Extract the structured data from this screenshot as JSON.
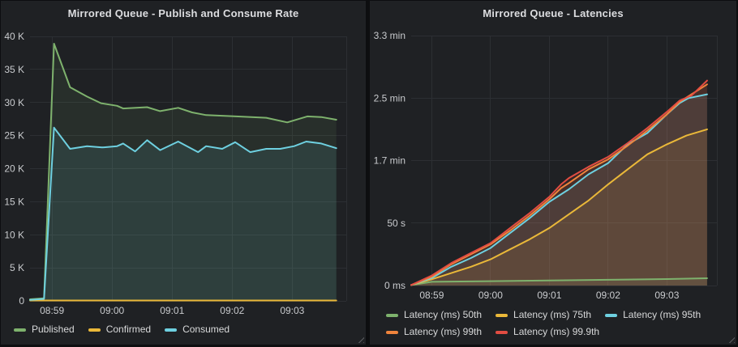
{
  "colors": {
    "page_bg": "#0d0e10",
    "panel_bg": "#1f2124",
    "grid": "#2c2f33",
    "tick_text": "#c9cbce",
    "title_text": "#dcdde0",
    "legend_text": "#d8d9da",
    "palette_green": "#7EB26D",
    "palette_yellow": "#EAB839",
    "palette_blue": "#6ED0E0",
    "palette_orange": "#EF843C",
    "palette_red": "#E24D42"
  },
  "chart_data": [
    {
      "type": "area",
      "title": "Mirrored Queue - Publish and Consume Rate",
      "x_unit": "time of day, t = seconds after 08:59:00",
      "x_domain": [
        -22,
        294
      ],
      "x_ticks": [
        {
          "t": 0,
          "label": "08:59"
        },
        {
          "t": 60,
          "label": "09:00"
        },
        {
          "t": 120,
          "label": "09:01"
        },
        {
          "t": 180,
          "label": "09:02"
        },
        {
          "t": 240,
          "label": "09:03"
        }
      ],
      "y_domain": [
        0,
        40000
      ],
      "y_ticks": [
        {
          "v": 40000,
          "label": "40 K"
        },
        {
          "v": 35000,
          "label": "35 K"
        },
        {
          "v": 30000,
          "label": "30 K"
        },
        {
          "v": 25000,
          "label": "25 K"
        },
        {
          "v": 20000,
          "label": "20 K"
        },
        {
          "v": 15000,
          "label": "15 K"
        },
        {
          "v": 10000,
          "label": "10 K"
        },
        {
          "v": 5000,
          "label": "5 K"
        },
        {
          "v": 0,
          "label": "0"
        }
      ],
      "grid": true,
      "legend_position": "bottom-left",
      "series": [
        {
          "name": "Published",
          "color": "#7EB26D",
          "fill_opacity": 0.1,
          "points": [
            [
              -22,
              250
            ],
            [
              -8,
              400
            ],
            [
              2,
              38900
            ],
            [
              18,
              32300
            ],
            [
              35,
              30900
            ],
            [
              49,
              29900
            ],
            [
              65,
              29500
            ],
            [
              71,
              29100
            ],
            [
              95,
              29300
            ],
            [
              108,
              28700
            ],
            [
              126,
              29200
            ],
            [
              140,
              28500
            ],
            [
              154,
              28100
            ],
            [
              184,
              27900
            ],
            [
              214,
              27700
            ],
            [
              235,
              27000
            ],
            [
              255,
              27900
            ],
            [
              269,
              27800
            ],
            [
              284,
              27400
            ]
          ]
        },
        {
          "name": "Confirmed",
          "color": "#EAB839",
          "fill_opacity": 0,
          "points": [
            [
              -22,
              60
            ],
            [
              284,
              60
            ]
          ]
        },
        {
          "name": "Consumed",
          "color": "#6ED0E0",
          "fill_opacity": 0.1,
          "points": [
            [
              -22,
              150
            ],
            [
              -8,
              300
            ],
            [
              2,
              26200
            ],
            [
              18,
              23000
            ],
            [
              35,
              23400
            ],
            [
              50,
              23200
            ],
            [
              65,
              23400
            ],
            [
              71,
              23800
            ],
            [
              83,
              22600
            ],
            [
              95,
              24300
            ],
            [
              108,
              22800
            ],
            [
              126,
              24100
            ],
            [
              146,
              22500
            ],
            [
              154,
              23400
            ],
            [
              170,
              23000
            ],
            [
              183,
              24000
            ],
            [
              198,
              22500
            ],
            [
              214,
              23000
            ],
            [
              228,
              23000
            ],
            [
              242,
              23400
            ],
            [
              254,
              24100
            ],
            [
              269,
              23800
            ],
            [
              284,
              23100
            ]
          ]
        }
      ]
    },
    {
      "type": "area",
      "title": "Mirrored Queue - Latencies",
      "x_unit": "time of day, t = seconds after 08:59:00",
      "y_unit": "latency in seconds",
      "x_domain": [
        -21,
        291
      ],
      "x_ticks": [
        {
          "t": 0,
          "label": "08:59"
        },
        {
          "t": 60,
          "label": "09:00"
        },
        {
          "t": 120,
          "label": "09:01"
        },
        {
          "t": 180,
          "label": "09:02"
        },
        {
          "t": 240,
          "label": "09:03"
        }
      ],
      "y_domain": [
        0,
        200
      ],
      "y_ticks": [
        {
          "v": 200,
          "label": "3.3 min"
        },
        {
          "v": 150,
          "label": "2.5 min"
        },
        {
          "v": 100,
          "label": "1.7 min"
        },
        {
          "v": 50,
          "label": "50 s"
        },
        {
          "v": 0,
          "label": "0 ms"
        }
      ],
      "grid": true,
      "legend_position": "bottom-left",
      "series": [
        {
          "name": "Latency (ms) 50th",
          "color": "#7EB26D",
          "fill_opacity": 0.1,
          "points": [
            [
              -21,
              0.4
            ],
            [
              0,
              3
            ],
            [
              60,
              3.5
            ],
            [
              120,
              4
            ],
            [
              180,
              4.6
            ],
            [
              240,
              5.2
            ],
            [
              281,
              5.8
            ]
          ]
        },
        {
          "name": "Latency (ms) 75th",
          "color": "#EAB839",
          "fill_opacity": 0.11,
          "points": [
            [
              -21,
              0.4
            ],
            [
              0,
              5
            ],
            [
              20,
              10
            ],
            [
              40,
              15
            ],
            [
              60,
              21
            ],
            [
              80,
              29
            ],
            [
              100,
              37
            ],
            [
              120,
              46
            ],
            [
              140,
              57
            ],
            [
              160,
              68
            ],
            [
              180,
              81
            ],
            [
              200,
              93
            ],
            [
              220,
              105
            ],
            [
              240,
              113
            ],
            [
              260,
              120
            ],
            [
              281,
              125
            ]
          ]
        },
        {
          "name": "Latency (ms) 95th",
          "color": "#6ED0E0",
          "fill_opacity": 0.11,
          "points": [
            [
              -21,
              0.4
            ],
            [
              0,
              6
            ],
            [
              20,
              15
            ],
            [
              40,
              22
            ],
            [
              60,
              30
            ],
            [
              80,
              42
            ],
            [
              100,
              54
            ],
            [
              120,
              67
            ],
            [
              140,
              77
            ],
            [
              160,
              89
            ],
            [
              180,
              98
            ],
            [
              200,
              113
            ],
            [
              220,
              122
            ],
            [
              240,
              137
            ],
            [
              253,
              146
            ],
            [
              262,
              150
            ],
            [
              281,
              153
            ]
          ]
        },
        {
          "name": "Latency (ms) 99th",
          "color": "#EF843C",
          "fill_opacity": 0.11,
          "points": [
            [
              -21,
              0.4
            ],
            [
              0,
              7
            ],
            [
              20,
              17
            ],
            [
              40,
              25
            ],
            [
              60,
              33
            ],
            [
              80,
              44
            ],
            [
              100,
              56
            ],
            [
              120,
              69
            ],
            [
              132,
              78
            ],
            [
              140,
              82
            ],
            [
              160,
              93
            ],
            [
              180,
              101
            ],
            [
              200,
              112
            ],
            [
              220,
              124
            ],
            [
              240,
              137
            ],
            [
              253,
              147
            ],
            [
              265,
              153
            ],
            [
              281,
              161
            ]
          ]
        },
        {
          "name": "Latency (ms) 99.9th",
          "color": "#E24D42",
          "fill_opacity": 0.11,
          "points": [
            [
              -21,
              0.4
            ],
            [
              0,
              8
            ],
            [
              20,
              18
            ],
            [
              40,
              26
            ],
            [
              60,
              34
            ],
            [
              80,
              46
            ],
            [
              100,
              58
            ],
            [
              120,
              71
            ],
            [
              132,
              81
            ],
            [
              140,
              86
            ],
            [
              160,
              95
            ],
            [
              180,
              103
            ],
            [
              200,
              114
            ],
            [
              220,
              126
            ],
            [
              240,
              139
            ],
            [
              253,
              148
            ],
            [
              265,
              152
            ],
            [
              281,
              164
            ]
          ]
        }
      ]
    }
  ]
}
